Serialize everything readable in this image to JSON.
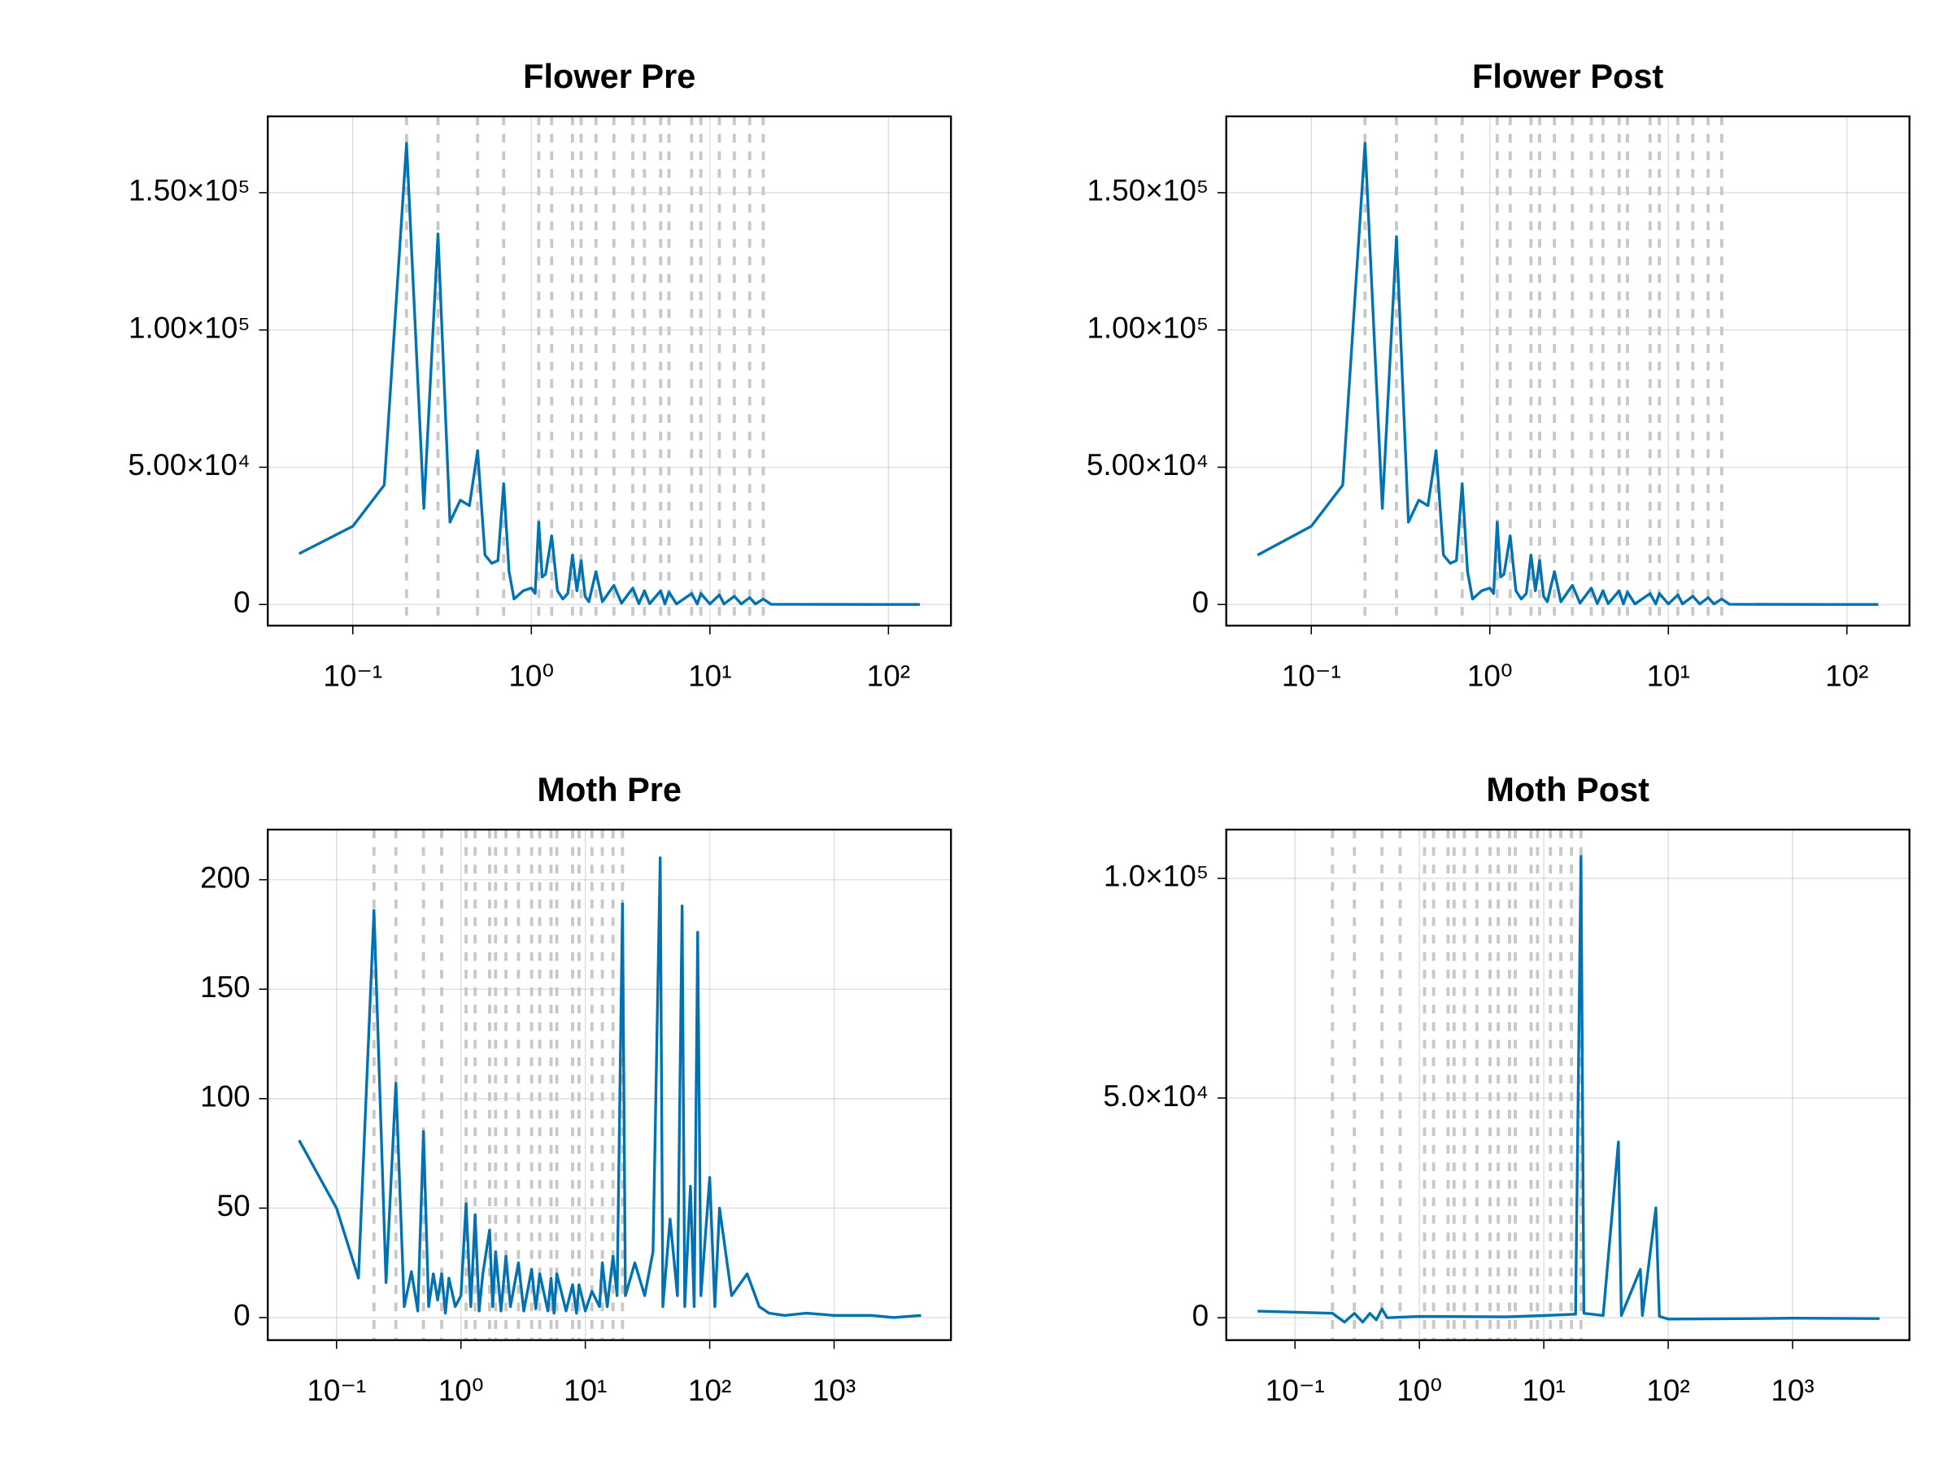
{
  "chart_data": [
    {
      "type": "line",
      "title": "Flower Pre",
      "x_scale": "log",
      "grid": true,
      "color": "#0072b2",
      "x": [
        0.05,
        0.1,
        0.15,
        0.2,
        0.25,
        0.3,
        0.35,
        0.4,
        0.45,
        0.5,
        0.55,
        0.6,
        0.65,
        0.7,
        0.75,
        0.8,
        0.9,
        1.0,
        1.05,
        1.1,
        1.15,
        1.2,
        1.3,
        1.4,
        1.5,
        1.6,
        1.7,
        1.8,
        1.9,
        2.0,
        2.1,
        2.3,
        2.5,
        2.9,
        3.2,
        3.7,
        4.0,
        4.3,
        4.6,
        5.3,
        5.6,
        5.9,
        6.5,
        7.9,
        8.5,
        8.9,
        10,
        11.3,
        12,
        13.7,
        15,
        16.7,
        18,
        19.9,
        22,
        40,
        80,
        150
      ],
      "values": [
        18500,
        28500,
        43500,
        168000,
        35000,
        135000,
        30000,
        38000,
        36000,
        56000,
        18000,
        15000,
        16000,
        44000,
        12000,
        2000,
        5000,
        6000,
        4000,
        30000,
        10000,
        11000,
        25000,
        5000,
        2000,
        4000,
        18000,
        5000,
        16000,
        3000,
        1000,
        12000,
        1000,
        7000,
        500,
        6000,
        300,
        5000,
        300,
        5000,
        200,
        4500,
        200,
        4000,
        200,
        4000,
        200,
        3500,
        200,
        3000,
        200,
        2500,
        200,
        2000,
        100,
        50,
        30,
        20
      ],
      "vlines": [
        0.2,
        0.3,
        0.5,
        0.7,
        1.1,
        1.3,
        1.7,
        1.9,
        2.3,
        2.9,
        3.7,
        4.3,
        5.3,
        5.9,
        7.9,
        8.9,
        11.3,
        13.7,
        16.7,
        19.9
      ],
      "xlim": [
        0.0334,
        224
      ],
      "ylim": [
        -7700,
        177800
      ],
      "xticks": [
        {
          "value": 0.1,
          "label": "10⁻¹"
        },
        {
          "value": 1,
          "label": "10⁰"
        },
        {
          "value": 10,
          "label": "10¹"
        },
        {
          "value": 100,
          "label": "10²"
        }
      ],
      "yticks": [
        0,
        {
          "value": 50000,
          "label": "5.00×10⁴"
        },
        {
          "value": 100000,
          "label": "1.00×10⁵"
        },
        {
          "value": 150000,
          "label": "1.50×10⁵"
        }
      ]
    },
    {
      "type": "line",
      "title": "Flower Post",
      "x_scale": "log",
      "grid": true,
      "color": "#0072b2",
      "x": [
        0.05,
        0.1,
        0.15,
        0.2,
        0.25,
        0.3,
        0.35,
        0.4,
        0.45,
        0.5,
        0.55,
        0.6,
        0.65,
        0.7,
        0.75,
        0.8,
        0.9,
        1.0,
        1.05,
        1.1,
        1.15,
        1.2,
        1.3,
        1.4,
        1.5,
        1.6,
        1.7,
        1.8,
        1.9,
        2.0,
        2.1,
        2.3,
        2.5,
        2.9,
        3.2,
        3.7,
        4.0,
        4.3,
        4.6,
        5.3,
        5.6,
        5.9,
        6.5,
        7.9,
        8.5,
        8.9,
        10,
        11.3,
        12,
        13.7,
        15,
        16.7,
        18,
        19.9,
        22,
        40,
        80,
        150
      ],
      "values": [
        18000,
        28500,
        43500,
        168000,
        35000,
        134000,
        30000,
        38000,
        36000,
        56000,
        18000,
        15000,
        16000,
        44000,
        12000,
        2000,
        5000,
        6000,
        4000,
        30000,
        10000,
        11000,
        25000,
        5000,
        2000,
        4000,
        18000,
        5000,
        16000,
        3000,
        1000,
        12000,
        1000,
        7000,
        500,
        6000,
        300,
        5000,
        300,
        5000,
        200,
        4500,
        200,
        4000,
        200,
        4000,
        200,
        3500,
        200,
        3000,
        200,
        2500,
        200,
        2000,
        100,
        50,
        30,
        20
      ],
      "vlines": [
        0.2,
        0.3,
        0.5,
        0.7,
        1.1,
        1.3,
        1.7,
        1.9,
        2.3,
        2.9,
        3.7,
        4.3,
        5.3,
        5.9,
        7.9,
        8.9,
        11.3,
        13.7,
        16.7,
        19.9
      ],
      "xlim": [
        0.0334,
        224
      ],
      "ylim": [
        -7700,
        177800
      ],
      "xticks": [
        {
          "value": 0.1,
          "label": "10⁻¹"
        },
        {
          "value": 1,
          "label": "10⁰"
        },
        {
          "value": 10,
          "label": "10¹"
        },
        {
          "value": 100,
          "label": "10²"
        }
      ],
      "yticks": [
        0,
        {
          "value": 50000,
          "label": "5.00×10⁴"
        },
        {
          "value": 100000,
          "label": "1.00×10⁵"
        },
        {
          "value": 150000,
          "label": "1.50×10⁵"
        }
      ]
    },
    {
      "type": "line",
      "title": "Moth Pre",
      "x_scale": "log",
      "grid": true,
      "color": "#0072b2",
      "x": [
        0.05,
        0.1,
        0.15,
        0.2,
        0.25,
        0.3,
        0.35,
        0.4,
        0.45,
        0.5,
        0.55,
        0.6,
        0.65,
        0.7,
        0.75,
        0.8,
        0.9,
        1.0,
        1.1,
        1.2,
        1.3,
        1.4,
        1.5,
        1.7,
        1.8,
        1.9,
        2.1,
        2.3,
        2.5,
        2.9,
        3.2,
        3.7,
        4,
        4.3,
        5,
        5.3,
        5.6,
        5.9,
        7,
        7.9,
        8.5,
        8.9,
        10,
        11.3,
        13,
        13.7,
        15,
        16.7,
        18,
        19.9,
        21,
        25,
        30,
        35,
        40,
        42,
        48,
        55,
        60,
        63,
        70,
        75,
        80,
        85,
        100,
        110,
        120,
        150,
        200,
        250,
        300,
        400,
        600,
        1000,
        2000,
        3000,
        5000
      ],
      "values": [
        81,
        50,
        18,
        186,
        16,
        107,
        5,
        21,
        3,
        85,
        5,
        20,
        8,
        20,
        2,
        18,
        5,
        10,
        52,
        5,
        47,
        3,
        20,
        40,
        5,
        30,
        3,
        28,
        5,
        25,
        3,
        22,
        4,
        20,
        3,
        18,
        2,
        20,
        3,
        15,
        2,
        15,
        3,
        12,
        5,
        25,
        5,
        28,
        10,
        189,
        10,
        25,
        10,
        30,
        210,
        5,
        45,
        10,
        188,
        5,
        60,
        5,
        176,
        10,
        64,
        5,
        50,
        10,
        20,
        5,
        2,
        1,
        2,
        1,
        1,
        0,
        1
      ],
      "vlines": [
        0.2,
        0.3,
        0.5,
        0.7,
        1.1,
        1.3,
        1.7,
        1.9,
        2.3,
        2.9,
        3.7,
        4.3,
        5.3,
        5.9,
        7.9,
        8.9,
        11.3,
        13.7,
        16.7,
        19.9
      ],
      "xlim": [
        0.028,
        8700
      ],
      "ylim": [
        -10.3,
        222.9
      ],
      "xticks": [
        {
          "value": 0.1,
          "label": "10⁻¹"
        },
        {
          "value": 1,
          "label": "10⁰"
        },
        {
          "value": 10,
          "label": "10¹"
        },
        {
          "value": 100,
          "label": "10²"
        },
        {
          "value": 1000,
          "label": "10³"
        }
      ],
      "yticks": [
        0,
        50,
        100,
        150,
        200
      ]
    },
    {
      "type": "line",
      "title": "Moth Post",
      "x_scale": "log",
      "grid": true,
      "color": "#0072b2",
      "x": [
        0.05,
        0.2,
        0.25,
        0.3,
        0.35,
        0.4,
        0.45,
        0.5,
        0.55,
        1,
        5,
        10,
        18,
        19.9,
        21,
        30,
        39.8,
        42,
        59.7,
        62,
        79.6,
        85,
        100,
        500,
        1000,
        5000
      ],
      "values": [
        1500,
        1000,
        -1000,
        1000,
        -1000,
        1000,
        -500,
        2000,
        0,
        300,
        200,
        500,
        800,
        105000,
        1000,
        500,
        40000,
        500,
        11000,
        500,
        25000,
        300,
        -300,
        -200,
        -100,
        -200
      ],
      "vlines": [
        0.2,
        0.3,
        0.5,
        0.7,
        1.1,
        1.3,
        1.7,
        1.9,
        2.3,
        2.9,
        3.7,
        4.3,
        5.3,
        5.9,
        7.9,
        8.9,
        11.3,
        13.7,
        16.7,
        19.9
      ],
      "xlim": [
        0.028,
        8700
      ],
      "ylim": [
        -5100,
        111100
      ],
      "xticks": [
        {
          "value": 0.1,
          "label": "10⁻¹"
        },
        {
          "value": 1,
          "label": "10⁰"
        },
        {
          "value": 10,
          "label": "10¹"
        },
        {
          "value": 100,
          "label": "10²"
        },
        {
          "value": 1000,
          "label": "10³"
        }
      ],
      "yticks": [
        0,
        {
          "value": 50000,
          "label": "5.0×10⁴"
        },
        {
          "value": 100000,
          "label": "1.0×10⁵"
        }
      ]
    }
  ]
}
